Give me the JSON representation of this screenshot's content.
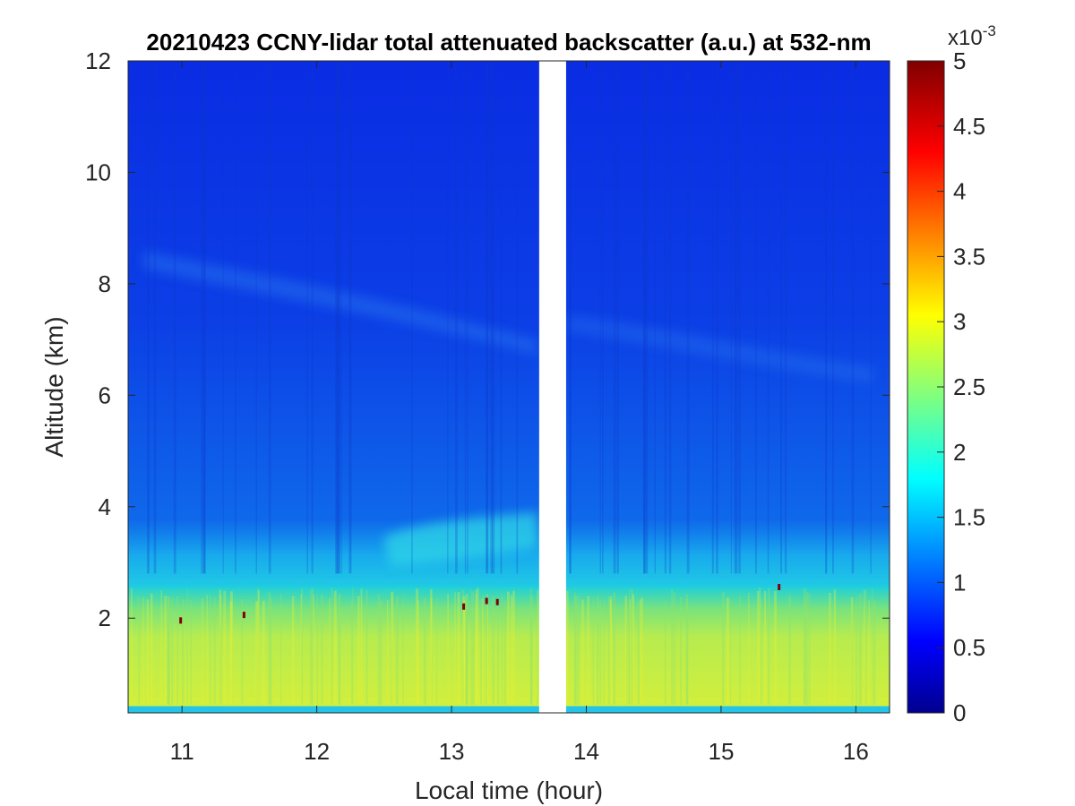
{
  "chart_data": {
    "type": "heatmap",
    "title": "20210423 CCNY-lidar total attenuated backscatter (a.u.) at 532-nm",
    "xlabel": "Local time (hour)",
    "ylabel": "Altitude (km)",
    "xlim": [
      10.6,
      16.25
    ],
    "ylim": [
      0.3,
      12
    ],
    "xticks": [
      "11",
      "12",
      "13",
      "14",
      "15",
      "16"
    ],
    "yticks": [
      "2",
      "4",
      "6",
      "8",
      "10",
      "12"
    ],
    "colorbar": {
      "clim": [
        0,
        5
      ],
      "ticks": [
        "0",
        "0.5",
        "1",
        "1.5",
        "2",
        "2.5",
        "3",
        "3.5",
        "4",
        "4.5",
        "5"
      ],
      "exponent_label": "x10",
      "exponent_value": "-3",
      "colormap": "jet"
    },
    "data_gap": {
      "x_start": 13.65,
      "x_end": 13.85
    },
    "layers": [
      {
        "name": "near-surface aerosol layer",
        "alt_range_km": [
          0.3,
          2.3
        ],
        "value": 2.9
      },
      {
        "name": "transition layer",
        "alt_range_km": [
          2.3,
          3.2
        ],
        "value": 1.8
      },
      {
        "name": "lofted aerosol layer",
        "time_range": [
          12.5,
          13.6
        ],
        "alt_range_km": [
          2.9,
          4.0
        ],
        "value": 1.9
      },
      {
        "name": "free troposphere",
        "alt_range_km": [
          3.2,
          12
        ],
        "value": 1.0
      }
    ],
    "hotspots": [
      {
        "x": 10.99,
        "y": 1.95,
        "value": 5
      },
      {
        "x": 11.46,
        "y": 2.05,
        "value": 5
      },
      {
        "x": 13.09,
        "y": 2.2,
        "value": 5
      },
      {
        "x": 13.26,
        "y": 2.3,
        "value": 5
      },
      {
        "x": 13.34,
        "y": 2.28,
        "value": 5
      },
      {
        "x": 15.43,
        "y": 2.55,
        "value": 5
      }
    ]
  }
}
